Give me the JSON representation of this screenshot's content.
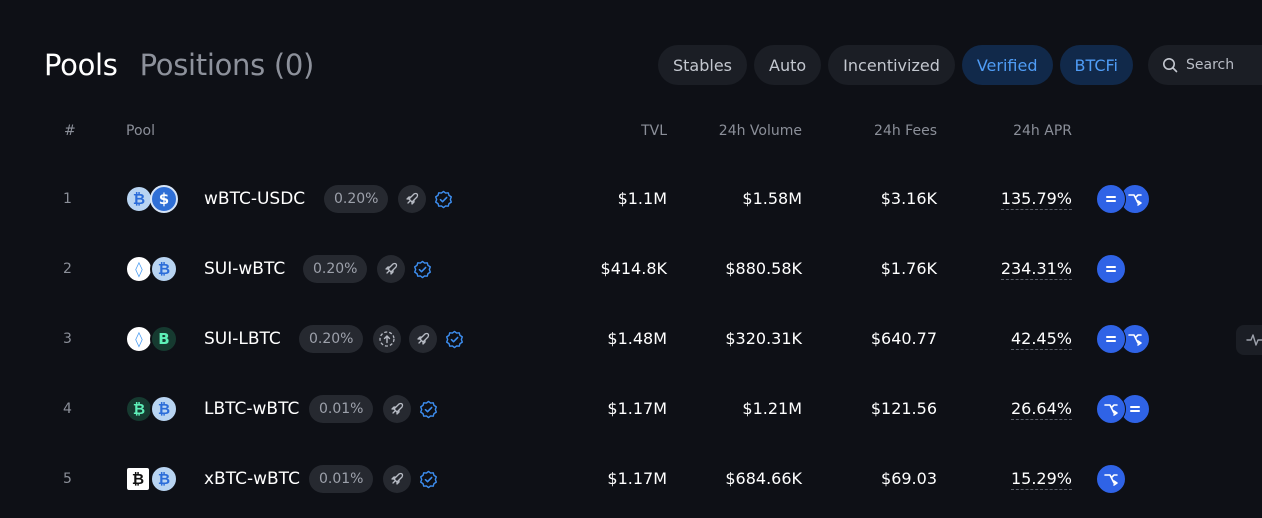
{
  "header": {
    "pools_tab": "Pools",
    "positions_tab": "Positions (0)"
  },
  "filters": [
    {
      "label": "Stables",
      "active": false
    },
    {
      "label": "Auto",
      "active": false
    },
    {
      "label": "Incentivized",
      "active": false
    },
    {
      "label": "Verified",
      "active": true
    },
    {
      "label": "BTCFi",
      "active": true
    }
  ],
  "search": {
    "placeholder": "Search"
  },
  "columns": {
    "num": "#",
    "pool": "Pool",
    "tvl": "TVL",
    "volume": "24h Volume",
    "fees": "24h Fees",
    "apr": "24h APR"
  },
  "rows": [
    {
      "num": "1",
      "pair": "wBTC-USDC",
      "fee": "0.20%",
      "tvl": "$1.1M",
      "volume": "$1.58M",
      "fees": "$3.16K",
      "apr": "135.79%",
      "tokens": [
        "btc",
        "usdc"
      ],
      "token_glyphs": [
        "₿",
        "$"
      ],
      "icons": [
        "rocket-icon"
      ],
      "strategies": [
        "equal-icon",
        "swap-icon"
      ],
      "side_button": false
    },
    {
      "num": "2",
      "pair": "SUI-wBTC",
      "fee": "0.20%",
      "tvl": "$414.8K",
      "volume": "$880.58K",
      "fees": "$1.76K",
      "apr": "234.31%",
      "tokens": [
        "sui",
        "btc"
      ],
      "token_glyphs": [
        "◊",
        "₿"
      ],
      "icons": [
        "rocket-icon"
      ],
      "strategies": [
        "equal-icon"
      ],
      "side_button": false
    },
    {
      "num": "3",
      "pair": "SUI-LBTC",
      "fee": "0.20%",
      "tvl": "$1.48M",
      "volume": "$320.31K",
      "fees": "$640.77",
      "apr": "42.45%",
      "tokens": [
        "sui",
        "lbtc"
      ],
      "token_glyphs": [
        "◊",
        "B"
      ],
      "icons": [
        "upload-icon",
        "rocket-icon"
      ],
      "strategies": [
        "equal-icon",
        "swap-icon"
      ],
      "side_button": true
    },
    {
      "num": "4",
      "pair": "LBTC-wBTC",
      "fee": "0.01%",
      "tvl": "$1.17M",
      "volume": "$1.21M",
      "fees": "$121.56",
      "apr": "26.64%",
      "tokens": [
        "lbtc",
        "btc"
      ],
      "token_glyphs": [
        "₿",
        "₿"
      ],
      "icons": [
        "rocket-icon"
      ],
      "strategies": [
        "swap-icon",
        "equal-icon"
      ],
      "side_button": false
    },
    {
      "num": "5",
      "pair": "xBTC-wBTC",
      "fee": "0.01%",
      "tvl": "$1.17M",
      "volume": "$684.66K",
      "fees": "$69.03",
      "apr": "15.29%",
      "tokens": [
        "xbtc",
        "btc"
      ],
      "token_glyphs": [
        "₿",
        "₿"
      ],
      "icons": [
        "rocket-icon"
      ],
      "strategies": [
        "swap-icon"
      ],
      "side_button": false
    }
  ],
  "colors": {
    "background": "#0e1016",
    "accent": "#4f9cf5",
    "strategy": "#2f63e6"
  }
}
